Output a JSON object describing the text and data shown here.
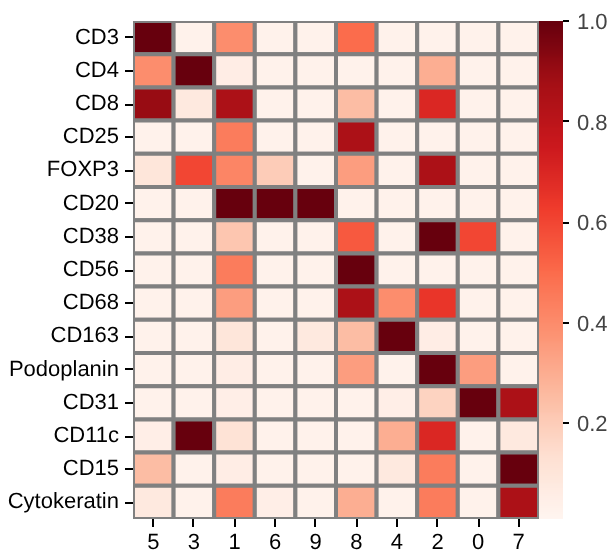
{
  "chart_data": {
    "type": "heatmap",
    "categories": [
      "5",
      "3",
      "1",
      "6",
      "9",
      "8",
      "4",
      "2",
      "0",
      "7"
    ],
    "y_categories": [
      "CD3",
      "CD4",
      "CD8",
      "CD25",
      "FOXP3",
      "CD20",
      "CD38",
      "CD56",
      "CD68",
      "CD163",
      "Podoplanin",
      "CD31",
      "CD11c",
      "CD15",
      "Cytokeratin"
    ],
    "cells": [
      [
        1.0,
        0.03,
        0.4,
        0.03,
        0.03,
        0.5,
        0.03,
        0.03,
        0.03,
        0.03
      ],
      [
        0.4,
        1.0,
        0.06,
        0.03,
        0.03,
        0.03,
        0.03,
        0.3,
        0.03,
        0.03
      ],
      [
        0.9,
        0.08,
        0.85,
        0.03,
        0.03,
        0.25,
        0.03,
        0.7,
        0.03,
        0.03
      ],
      [
        0.03,
        0.03,
        0.45,
        0.03,
        0.03,
        0.85,
        0.03,
        0.03,
        0.03,
        0.03
      ],
      [
        0.1,
        0.6,
        0.42,
        0.2,
        0.03,
        0.35,
        0.03,
        0.85,
        0.03,
        0.03
      ],
      [
        0.03,
        0.03,
        1.0,
        1.0,
        1.0,
        0.03,
        0.03,
        0.03,
        0.03,
        0.03
      ],
      [
        0.03,
        0.03,
        0.22,
        0.03,
        0.03,
        0.55,
        0.03,
        1.0,
        0.6,
        0.03
      ],
      [
        0.03,
        0.03,
        0.45,
        0.03,
        0.03,
        1.0,
        0.03,
        0.03,
        0.03,
        0.03
      ],
      [
        0.03,
        0.03,
        0.35,
        0.03,
        0.03,
        0.85,
        0.4,
        0.65,
        0.03,
        0.03
      ],
      [
        0.03,
        0.03,
        0.1,
        0.03,
        0.08,
        0.25,
        1.0,
        0.06,
        0.03,
        0.03
      ],
      [
        0.03,
        0.03,
        0.06,
        0.03,
        0.03,
        0.35,
        0.03,
        1.0,
        0.35,
        0.03
      ],
      [
        0.03,
        0.03,
        0.05,
        0.03,
        0.03,
        0.03,
        0.05,
        0.18,
        1.0,
        0.85
      ],
      [
        0.05,
        1.0,
        0.12,
        0.03,
        0.03,
        0.03,
        0.3,
        0.7,
        0.03,
        0.08
      ],
      [
        0.25,
        0.03,
        0.06,
        0.03,
        0.03,
        0.03,
        0.08,
        0.45,
        0.03,
        1.0
      ],
      [
        0.08,
        0.03,
        0.45,
        0.05,
        0.03,
        0.3,
        0.03,
        0.45,
        0.03,
        0.85
      ]
    ],
    "clim": [
      0.01,
      1.0
    ],
    "cticks": [
      0.2,
      0.4,
      0.6,
      0.8,
      {
        "value": 1,
        "label": "1.0"
      }
    ]
  }
}
